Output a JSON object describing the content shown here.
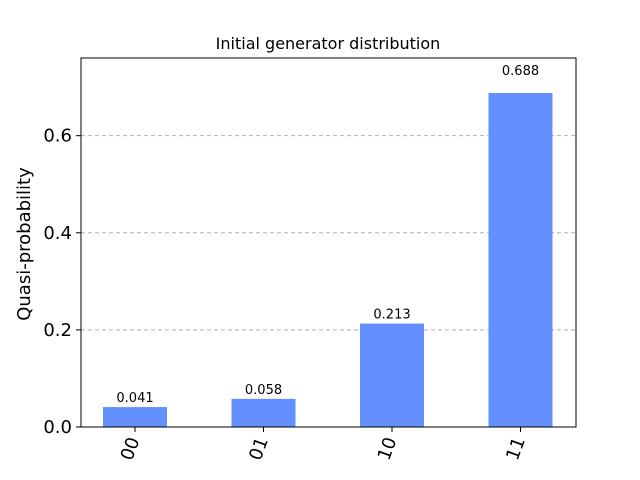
{
  "chart_data": {
    "type": "bar",
    "title": "Initial generator distribution",
    "xlabel": "",
    "ylabel": "Quasi-probability",
    "categories": [
      "00",
      "01",
      "10",
      "11"
    ],
    "values": [
      0.041,
      0.058,
      0.213,
      0.688
    ],
    "value_labels": [
      "0.041",
      "0.058",
      "0.213",
      "0.688"
    ],
    "ylim": [
      0,
      0.76
    ],
    "yticks": [
      0.0,
      0.2,
      0.4,
      0.6
    ],
    "ytick_labels": [
      "0.0",
      "0.2",
      "0.4",
      "0.6"
    ],
    "grid": "horizontal dashed at y-ticks",
    "bar_color": "#648fff",
    "grid_color": "#b0b0b0",
    "xtick_rotation": "rotated ~70 degrees"
  }
}
